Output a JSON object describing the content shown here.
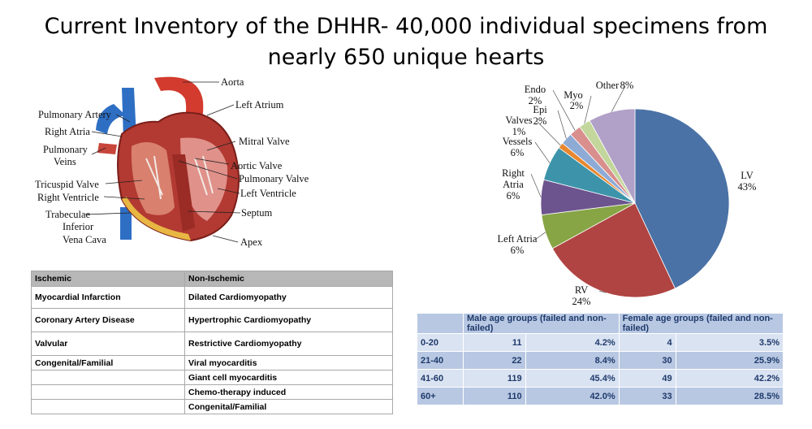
{
  "title_line1": "Current Inventory of the DHHR- 40,000 individual specimens from",
  "title_line2": "nearly 650 unique hearts",
  "heart_labels": {
    "aorta": "Aorta",
    "left_atrium": "Left Atrium",
    "pulmonary_artery": "Pulmonary Artery",
    "right_atria": "Right Atria",
    "pulmonary": "Pulmonary",
    "veins": "Veins",
    "mitral_valve": "Mitral Valve",
    "aortic_valve": "Aortic Valve",
    "pulmonary_valve": "Pulmonary Valve",
    "tricuspid_valve": "Tricuspid Valve",
    "left_ventricle": "Left Ventricle",
    "right_ventricle": "Right Ventricle",
    "trabeculae": "Trabeculae",
    "septum": "Septum",
    "inferior": "Inferior",
    "vena_cava": "Vena Cava",
    "apex": "Apex"
  },
  "chart_data": {
    "type": "pie",
    "slices": [
      {
        "name": "LV",
        "value": 43,
        "label": "43%",
        "color": "#4a72a6"
      },
      {
        "name": "RV",
        "value": 24,
        "label": "24%",
        "color": "#b04442"
      },
      {
        "name": "Left Atria",
        "value": 6,
        "label": "6%",
        "color": "#87a545"
      },
      {
        "name": "Right Atria",
        "value": 6,
        "label": "6%",
        "color": "#6c548e"
      },
      {
        "name": "Vessels",
        "value": 6,
        "label": "6%",
        "color": "#3d94aa"
      },
      {
        "name": "Valves",
        "value": 1,
        "label": "1%",
        "color": "#e8872e"
      },
      {
        "name": "Epi",
        "value": 2,
        "label": "2%",
        "color": "#8eabd6"
      },
      {
        "name": "Endo",
        "value": 2,
        "label": "2%",
        "color": "#d98f8d"
      },
      {
        "name": "Myo",
        "value": 2,
        "label": "2%",
        "color": "#c3d69b"
      },
      {
        "name": "Other",
        "value": 8,
        "label": "8%",
        "color": "#b1a0c7"
      }
    ]
  },
  "categories_table": {
    "headers": [
      "Ischemic",
      "Non-Ischemic"
    ],
    "rows": [
      [
        "Myocardial Infarction",
        "Dilated Cardiomyopathy"
      ],
      [
        "Coronary  Artery Disease",
        "Hypertrophic  Cardiomyopathy"
      ],
      [
        "Valvular",
        "Restrictive Cardiomyopathy"
      ],
      [
        "Congenital/Familial",
        "Viral myocarditis"
      ],
      [
        "",
        "Giant cell myocarditis"
      ],
      [
        "",
        "Chemo-therapy  induced"
      ],
      [
        "",
        "Congenital/Familial"
      ]
    ]
  },
  "age_table": {
    "headers": [
      "",
      "Male age groups (failed and non-failed)",
      "Female age groups (failed and non-failed)"
    ],
    "rows": [
      [
        "0-20",
        "11",
        "4.2%",
        "4",
        "3.5%"
      ],
      [
        "21-40",
        "22",
        "8.4%",
        "30",
        "25.9%"
      ],
      [
        "41-60",
        "119",
        "45.4%",
        "49",
        "42.2%"
      ],
      [
        "60+",
        "110",
        "42.0%",
        "33",
        "28.5%"
      ]
    ]
  }
}
